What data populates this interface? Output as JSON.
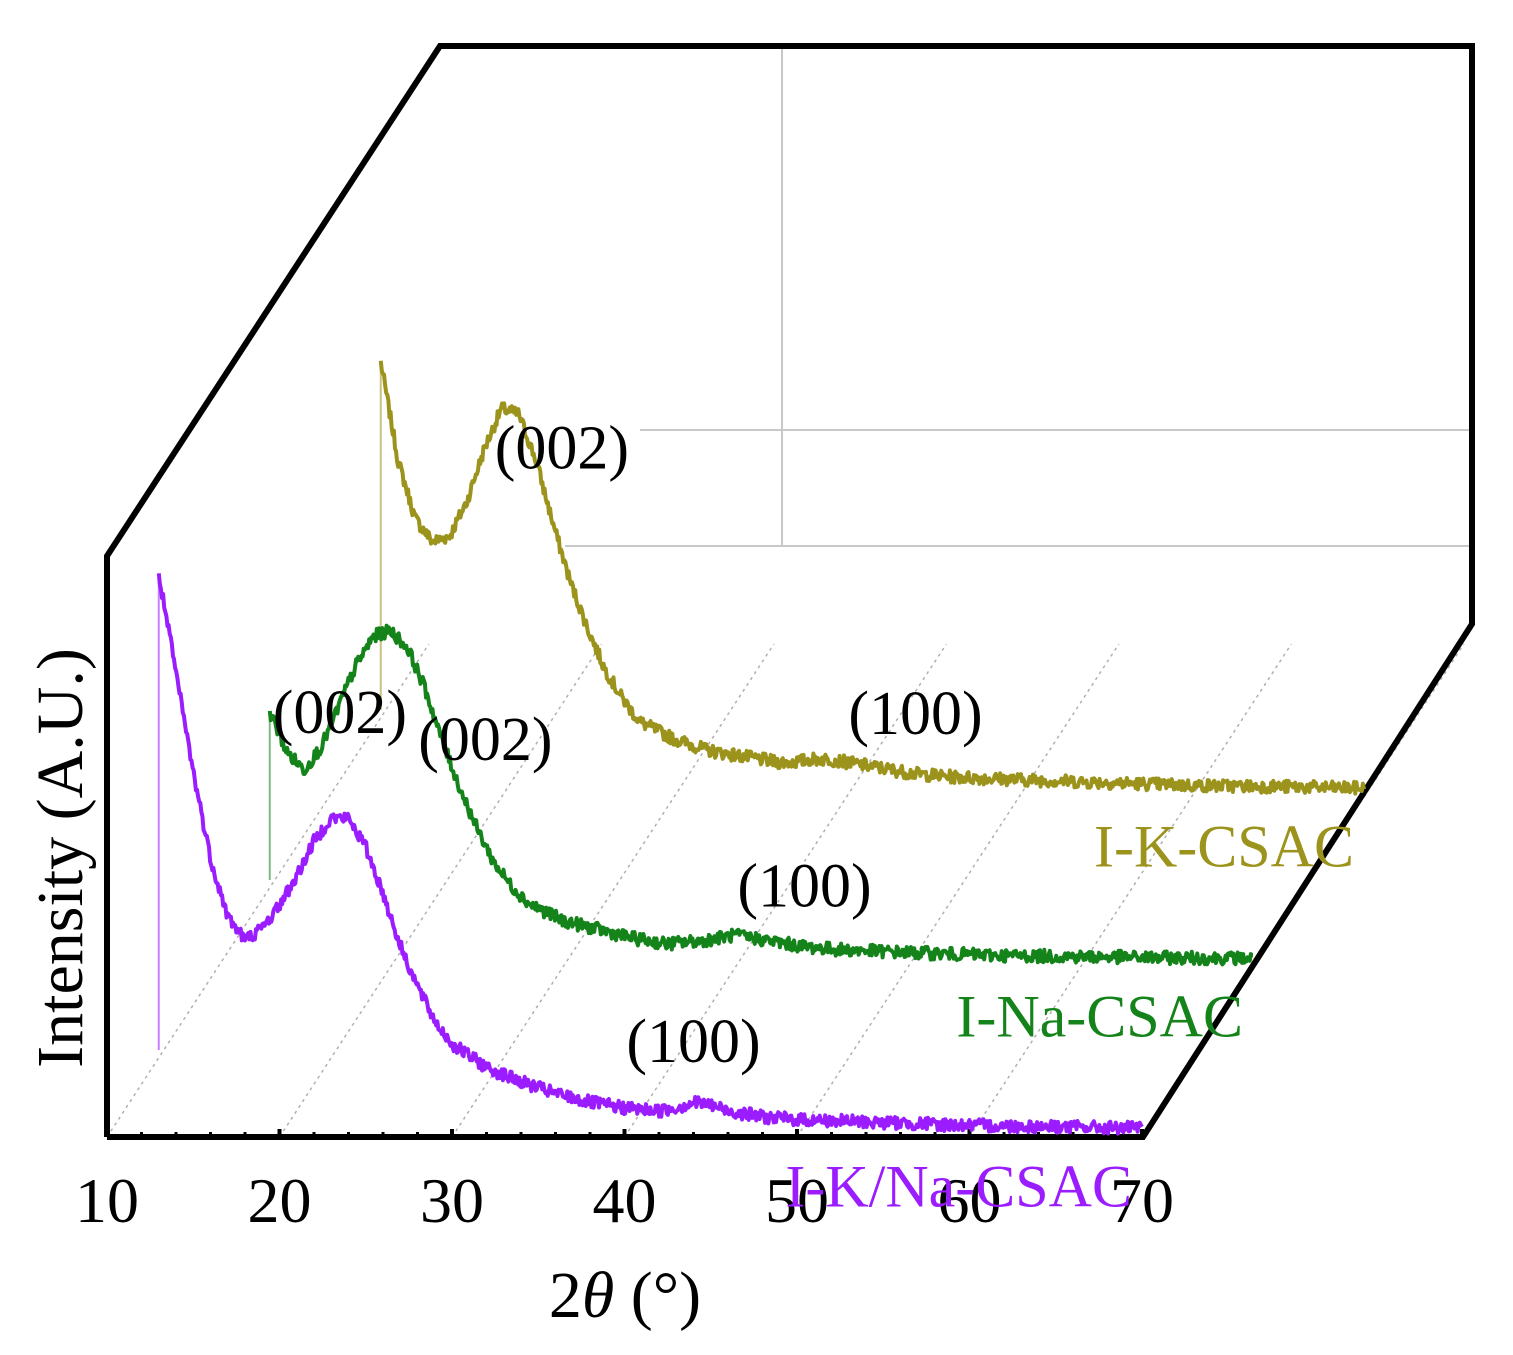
{
  "chart_data": {
    "type": "line",
    "style": "3d-waterfall",
    "xlabel_prefix": "2",
    "xlabel_symbol": "θ",
    "xlabel_suffix": " (°)",
    "ylabel": "Intensity (A.U.)",
    "xlim": [
      10,
      70
    ],
    "x_ticks": [
      "10",
      "20",
      "30",
      "40",
      "50",
      "60",
      "70"
    ],
    "series": [
      {
        "name": "I-K/Na-CSAC",
        "color": "#9a1cff",
        "depth": 0,
        "peaks": [
          {
            "label": "(002)",
            "x": 23.5
          },
          {
            "label": "(100)",
            "x": 44
          }
        ],
        "points": [
          [
            13,
            0.97
          ],
          [
            14,
            0.8
          ],
          [
            15,
            0.63
          ],
          [
            16,
            0.48
          ],
          [
            17,
            0.38
          ],
          [
            18,
            0.34
          ],
          [
            19,
            0.36
          ],
          [
            20,
            0.4
          ],
          [
            21,
            0.45
          ],
          [
            22,
            0.51
          ],
          [
            23,
            0.55
          ],
          [
            24,
            0.55
          ],
          [
            25,
            0.5
          ],
          [
            26,
            0.42
          ],
          [
            27,
            0.33
          ],
          [
            28,
            0.26
          ],
          [
            29,
            0.2
          ],
          [
            30,
            0.16
          ],
          [
            32,
            0.12
          ],
          [
            34,
            0.095
          ],
          [
            36,
            0.075
          ],
          [
            38,
            0.06
          ],
          [
            40,
            0.05
          ],
          [
            42,
            0.045
          ],
          [
            43,
            0.05
          ],
          [
            44,
            0.06
          ],
          [
            45,
            0.055
          ],
          [
            46,
            0.045
          ],
          [
            48,
            0.035
          ],
          [
            50,
            0.03
          ],
          [
            55,
            0.025
          ],
          [
            60,
            0.02
          ],
          [
            65,
            0.018
          ],
          [
            70,
            0.015
          ]
        ]
      },
      {
        "name": "I-Na-CSAC",
        "color": "#13831a",
        "depth": 1,
        "peaks": [
          {
            "label": "(002)",
            "x": 25.5
          },
          {
            "label": "(100)",
            "x": 44
          }
        ],
        "points": [
          [
            13,
            0.44
          ],
          [
            14,
            0.37
          ],
          [
            15,
            0.34
          ],
          [
            16,
            0.38
          ],
          [
            17,
            0.45
          ],
          [
            18,
            0.52
          ],
          [
            19,
            0.57
          ],
          [
            20,
            0.58
          ],
          [
            21,
            0.55
          ],
          [
            22,
            0.48
          ],
          [
            23,
            0.39
          ],
          [
            24,
            0.31
          ],
          [
            25,
            0.24
          ],
          [
            26,
            0.18
          ],
          [
            27,
            0.14
          ],
          [
            28,
            0.11
          ],
          [
            30,
            0.08
          ],
          [
            32,
            0.065
          ],
          [
            34,
            0.05
          ],
          [
            36,
            0.04
          ],
          [
            38,
            0.045
          ],
          [
            39,
            0.05
          ],
          [
            40,
            0.055
          ],
          [
            41,
            0.05
          ],
          [
            42,
            0.045
          ],
          [
            44,
            0.035
          ],
          [
            46,
            0.03
          ],
          [
            50,
            0.025
          ],
          [
            55,
            0.02
          ],
          [
            60,
            0.018
          ],
          [
            65,
            0.016
          ],
          [
            70,
            0.015
          ]
        ]
      },
      {
        "name": "I-K-CSAC",
        "color": "#9c931c",
        "depth": 2,
        "peaks": [
          {
            "label": "(002)",
            "x": 23.5
          },
          {
            "label": "(100)",
            "x": 44
          }
        ],
        "points": [
          [
            13,
            0.75
          ],
          [
            14,
            0.58
          ],
          [
            15,
            0.48
          ],
          [
            16,
            0.44
          ],
          [
            17,
            0.45
          ],
          [
            18,
            0.51
          ],
          [
            19,
            0.6
          ],
          [
            20,
            0.67
          ],
          [
            21,
            0.66
          ],
          [
            22,
            0.58
          ],
          [
            23,
            0.47
          ],
          [
            24,
            0.37
          ],
          [
            25,
            0.29
          ],
          [
            26,
            0.22
          ],
          [
            27,
            0.17
          ],
          [
            28,
            0.13
          ],
          [
            30,
            0.1
          ],
          [
            32,
            0.08
          ],
          [
            34,
            0.07
          ],
          [
            36,
            0.06
          ],
          [
            37,
            0.06
          ],
          [
            38,
            0.065
          ],
          [
            39,
            0.065
          ],
          [
            40,
            0.06
          ],
          [
            42,
            0.05
          ],
          [
            44,
            0.04
          ],
          [
            46,
            0.035
          ],
          [
            50,
            0.03
          ],
          [
            55,
            0.025
          ],
          [
            60,
            0.02
          ],
          [
            65,
            0.018
          ],
          [
            70,
            0.015
          ]
        ]
      }
    ]
  }
}
